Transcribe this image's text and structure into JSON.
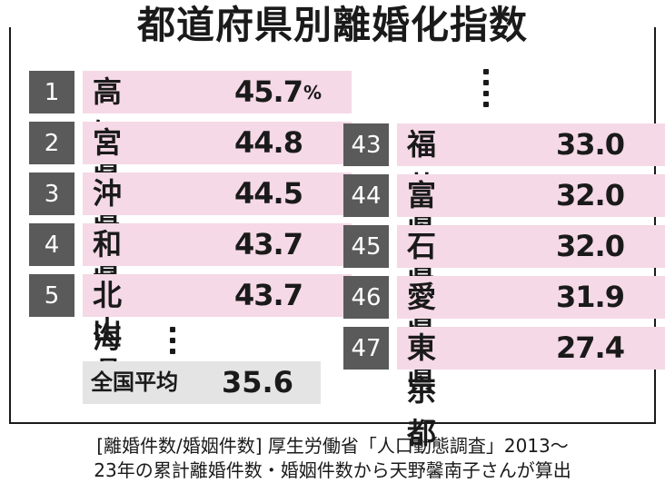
{
  "title": "都道府県別離婚化指数",
  "unit": "%",
  "top": [
    {
      "rank": "1",
      "pref": "高知県",
      "value": "45.7"
    },
    {
      "rank": "2",
      "pref": "宮崎県",
      "value": "44.8"
    },
    {
      "rank": "3",
      "pref": "沖縄県",
      "value": "44.5"
    },
    {
      "rank": "4",
      "pref": "和歌山県",
      "value": "43.7"
    },
    {
      "rank": "5",
      "pref": "北海道",
      "value": "43.7"
    }
  ],
  "bottom": [
    {
      "rank": "43",
      "pref": "福井県",
      "value": "33.0"
    },
    {
      "rank": "44",
      "pref": "富山県",
      "value": "32.0"
    },
    {
      "rank": "45",
      "pref": "石川県",
      "value": "32.0"
    },
    {
      "rank": "46",
      "pref": "愛知県",
      "value": "31.9"
    },
    {
      "rank": "47",
      "pref": "東京都",
      "value": "27.4"
    }
  ],
  "average": {
    "label": "全国平均",
    "value": "35.6"
  },
  "footnote": {
    "line1": "[離婚件数/婚姻件数] 厚生労働省「人口動態調査」2013〜",
    "line2": "23年の累計離婚件数・婚姻件数から天野馨南子さんが算出"
  }
}
